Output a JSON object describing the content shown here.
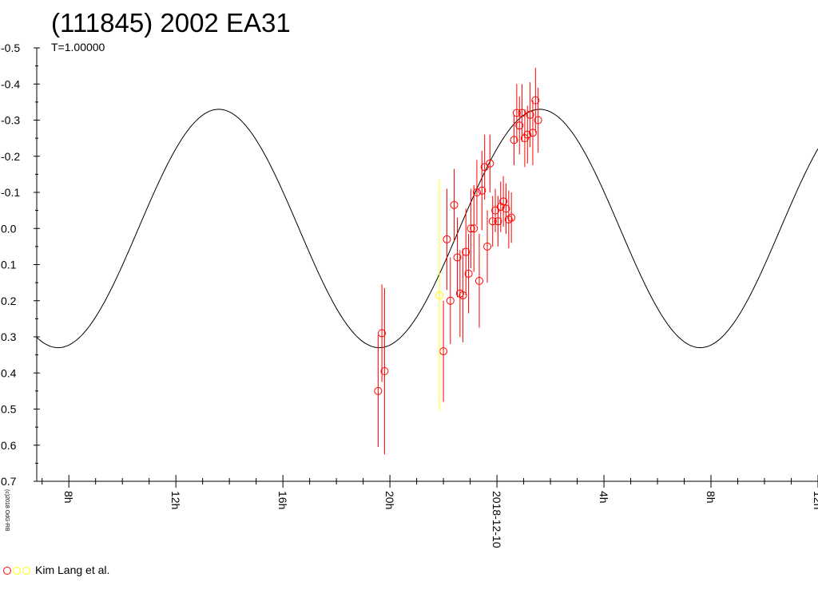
{
  "chart_data": {
    "type": "scatter",
    "title": "(111845) 2002 EA31",
    "subtitle": "T=1.00000",
    "copyright": "(c)2018 OdG-RB",
    "xlabel": "",
    "ylabel": "",
    "ylim": [
      0.7,
      -0.5
    ],
    "y_ticks": [
      "-0.5",
      "-0.4",
      "-0.3",
      "-0.2",
      "-0.1",
      "0.0",
      "0.1",
      "0.2",
      "0.3",
      "0.4",
      "0.5",
      "0.6",
      "0.7"
    ],
    "x_range_hours": [
      6.8,
      36.0
    ],
    "x_ticks": [
      {
        "hour": 8,
        "label": "8h"
      },
      {
        "hour": 12,
        "label": "12h"
      },
      {
        "hour": 16,
        "label": "16h"
      },
      {
        "hour": 20,
        "label": "20h"
      },
      {
        "hour": 24,
        "label": "2018-12-10"
      },
      {
        "hour": 28,
        "label": "4h"
      },
      {
        "hour": 32,
        "label": "8h"
      },
      {
        "hour": 36,
        "label": "12h"
      }
    ],
    "grid": false,
    "legend_position": "bottom-left",
    "fit_curve": {
      "amplitude": 0.33,
      "period_hours": 12.0,
      "max_at_hour": 13.6
    },
    "series": [
      {
        "name": "Kim Lang et al.",
        "color": "#ff0000",
        "points": [
          {
            "x": 19.56,
            "y": 0.45,
            "err": 0.155
          },
          {
            "x": 19.7,
            "y": 0.29,
            "err": 0.135
          },
          {
            "x": 19.8,
            "y": 0.395,
            "err": 0.23
          },
          {
            "x": 22.0,
            "y": 0.34,
            "err": 0.14
          },
          {
            "x": 22.13,
            "y": 0.03,
            "err": 0.14
          },
          {
            "x": 22.26,
            "y": 0.2,
            "err": 0.12
          },
          {
            "x": 22.4,
            "y": -0.065,
            "err": 0.1
          },
          {
            "x": 22.52,
            "y": 0.08,
            "err": 0.11
          },
          {
            "x": 22.62,
            "y": 0.18,
            "err": 0.12
          },
          {
            "x": 22.73,
            "y": 0.185,
            "err": 0.13
          },
          {
            "x": 22.84,
            "y": 0.065,
            "err": 0.12
          },
          {
            "x": 22.94,
            "y": 0.125,
            "err": 0.11
          },
          {
            "x": 23.03,
            "y": 0.0,
            "err": 0.11
          },
          {
            "x": 23.14,
            "y": 0.0,
            "err": 0.12
          },
          {
            "x": 23.25,
            "y": -0.1,
            "err": 0.09
          },
          {
            "x": 23.34,
            "y": 0.145,
            "err": 0.13
          },
          {
            "x": 23.44,
            "y": -0.105,
            "err": 0.11
          },
          {
            "x": 23.54,
            "y": -0.17,
            "err": 0.09
          },
          {
            "x": 23.64,
            "y": 0.05,
            "err": 0.1
          },
          {
            "x": 23.74,
            "y": -0.18,
            "err": 0.08
          },
          {
            "x": 23.84,
            "y": -0.02,
            "err": 0.07
          },
          {
            "x": 23.94,
            "y": -0.05,
            "err": 0.06
          },
          {
            "x": 24.04,
            "y": -0.02,
            "err": 0.07
          },
          {
            "x": 24.14,
            "y": -0.06,
            "err": 0.07
          },
          {
            "x": 24.24,
            "y": -0.075,
            "err": 0.07
          },
          {
            "x": 24.34,
            "y": -0.055,
            "err": 0.07
          },
          {
            "x": 24.44,
            "y": -0.025,
            "err": 0.08
          },
          {
            "x": 24.54,
            "y": -0.03,
            "err": 0.07
          },
          {
            "x": 24.64,
            "y": -0.245,
            "err": 0.07
          },
          {
            "x": 24.74,
            "y": -0.32,
            "err": 0.08
          },
          {
            "x": 24.84,
            "y": -0.285,
            "err": 0.08
          },
          {
            "x": 24.94,
            "y": -0.32,
            "err": 0.08
          },
          {
            "x": 25.04,
            "y": -0.25,
            "err": 0.08
          },
          {
            "x": 25.14,
            "y": -0.26,
            "err": 0.08
          },
          {
            "x": 25.24,
            "y": -0.315,
            "err": 0.09
          },
          {
            "x": 25.34,
            "y": -0.265,
            "err": 0.09
          },
          {
            "x": 25.44,
            "y": -0.355,
            "err": 0.09
          },
          {
            "x": 25.54,
            "y": -0.3,
            "err": 0.09
          }
        ]
      },
      {
        "name": "",
        "color": "#ffff00",
        "points": [
          {
            "x": 21.85,
            "y": 0.185,
            "err": 0.32
          }
        ]
      }
    ]
  }
}
